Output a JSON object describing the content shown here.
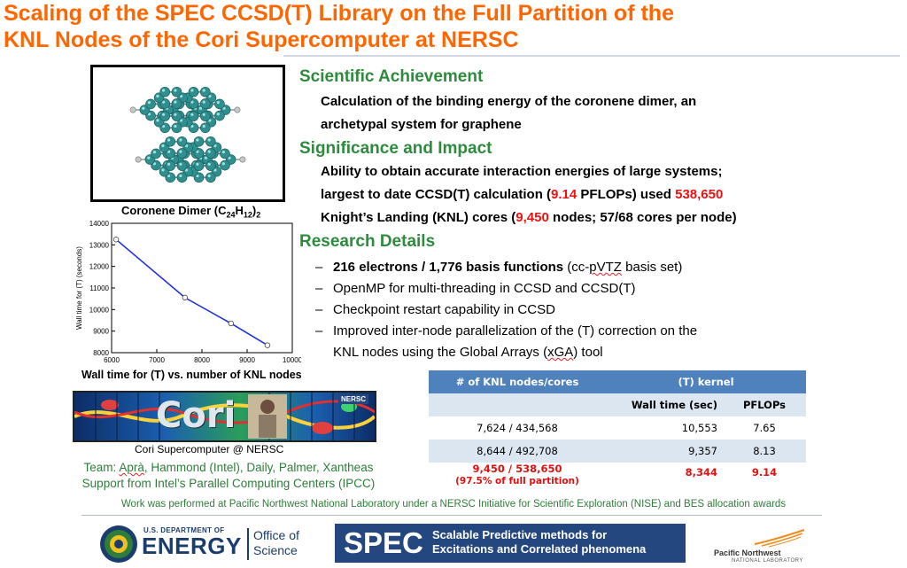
{
  "title": {
    "line1": "Scaling of the SPEC CCSD(T) Library on the Full Partition of the",
    "line2": "KNL Nodes of the Cori Supercomputer at NERSC"
  },
  "molecule": {
    "caption_prefix": "Coronene Dimer (C",
    "sub_c": "24",
    "caption_mid": "H",
    "sub_h": "12",
    "caption_suffix": ")",
    "sub_2": "2"
  },
  "achievement": {
    "heading": "Scientific Achievement",
    "line1": "Calculation of the binding energy of the coronene dimer, an",
    "line2": "archetypal system for graphene"
  },
  "significance": {
    "heading": "Significance and Impact",
    "line1": "Ability to obtain accurate interaction energies of large systems;",
    "line2_a": "largest to date CCSD(T) calculation (",
    "line2_red1": "9.14",
    "line2_b": " PFLOPs) used ",
    "line2_red2": "538,650",
    "line3_a": "Knight’s Landing (KNL) cores (",
    "line3_red": "9,450",
    "line3_b": " nodes; 57/68 cores per node)"
  },
  "research": {
    "heading": "Research Details",
    "item1_bold": "216 electrons / 1,776 basis functions",
    "item1_a": " (cc-",
    "item1_squig": "pVTZ",
    "item1_b": " basis set)",
    "item2": "OpenMP for multi-threading in CCSD and CCSD(T)",
    "item3": "Checkpoint restart capability in CCSD",
    "item4_line1": "Improved inter-node parallelization of the (T) correction on the",
    "item4_line2_a": "KNL nodes using the Global Arrays (",
    "item4_squig": "xGA",
    "item4_line2_b": ") tool",
    "dash": "–"
  },
  "chart_data": {
    "type": "line",
    "title": "",
    "caption": "Wall time for (T) vs. number of KNL nodes",
    "xlabel": "",
    "ylabel": "Wall time for (T) (seconds)",
    "xlim": [
      6000,
      10000
    ],
    "ylim": [
      8000,
      14000
    ],
    "xticks": [
      "6000",
      "7000",
      "8000",
      "9000",
      "10000"
    ],
    "yticks": [
      "8000",
      "9000",
      "10000",
      "11000",
      "12000",
      "13000",
      "14000"
    ],
    "x": [
      6100,
      7624,
      8644,
      9450
    ],
    "y": [
      13250,
      10553,
      9357,
      8344
    ],
    "line_color": "#1f2fe0"
  },
  "cori": {
    "logo_text": "Cori",
    "badge": "NERSC",
    "caption": "Cori Supercomputer @ NERSC"
  },
  "team": {
    "prefix": "Team: ",
    "squig": "Aprà",
    "rest": ", Hammond (Intel), Daily, Palmer, Xantheas",
    "line2": "Support from Intel’s Parallel Computing Centers (IPCC)"
  },
  "table": {
    "head_col1": "# of KNL nodes/cores",
    "head_col2": "(T) kernel",
    "sub_col2": "Wall time (sec)",
    "sub_col3": "PFLOPs",
    "rows": [
      {
        "nodes": "7,624 / 434,568",
        "wall": "10,553",
        "pflops": "7.65"
      },
      {
        "nodes": "8,644 / 492,708",
        "wall": "9,357",
        "pflops": "8.13"
      },
      {
        "nodes": "9,450 / 538,650",
        "note": "(97.5% of full partition)",
        "wall": "8,344",
        "pflops": "9.14"
      }
    ]
  },
  "footer": {
    "note": "Work was performed at Pacific Northwest National Laboratory under a NERSC Initiative for Scientific Exploration (NISE) and BES allocation awards"
  },
  "logos": {
    "doe_small": "U.S. DEPARTMENT OF",
    "doe_big": "ENERGY",
    "doe_office1": "Office of",
    "doe_office2": "Science",
    "spec_big": "SPEC",
    "spec_line1": "Scalable Predictive methods for",
    "spec_line2": "Excitations and Correlated phenomena",
    "pnnl_name": "Pacific Northwest",
    "pnnl_sub": "NATIONAL LABORATORY"
  },
  "colors": {
    "title": "#ff6600",
    "heading": "#2e8b3d",
    "highlight": "#ee1111",
    "table_header": "#4f81bd",
    "spec_bg": "#24477f"
  }
}
